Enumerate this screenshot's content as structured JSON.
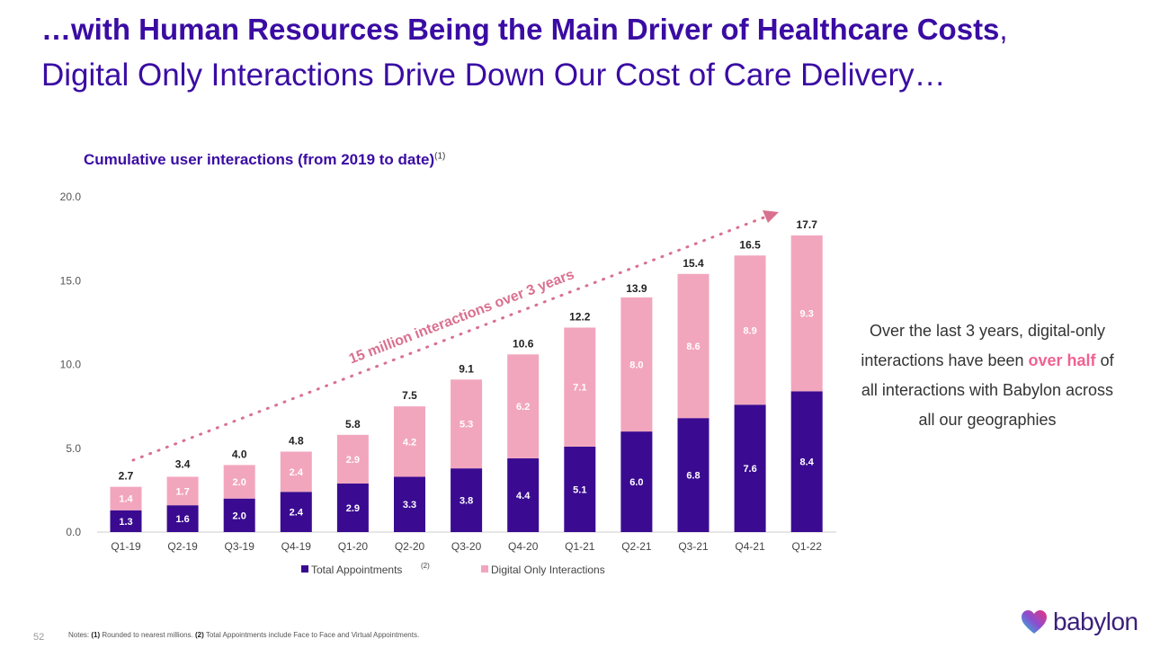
{
  "title": {
    "bold": "…with Human Resources Being the Main Driver of Healthcare Costs",
    "comma": ",",
    "subtitle": "Digital Only Interactions Drive Down Our Cost of Care Delivery…"
  },
  "chart_heading": {
    "text": "Cumulative user interactions (from 2019 to date)",
    "sup": "(1)"
  },
  "side_text": {
    "part1": "Over the last 3 years, digital-only interactions have been",
    "highlight": "over half",
    "part2": "of all interactions with Babylon across all our geographies"
  },
  "footer": {
    "page": "52",
    "notes_label": "Notes:",
    "n1": "(1)",
    "n1_text": "Rounded to nearest millions.",
    "n2": "(2)",
    "n2_text": "Total Appointments include Face to Face and Virtual Appointments."
  },
  "logo": {
    "text": "babylon"
  },
  "colors": {
    "appointments": "#3a0b91",
    "digital": "#f2a6bd",
    "title": "#3a0ca3",
    "arrow": "#d9708f"
  },
  "chart_data": {
    "type": "bar",
    "stacked": true,
    "title": "Cumulative user interactions (from 2019 to date)",
    "categories": [
      "Q1-19",
      "Q2-19",
      "Q3-19",
      "Q4-19",
      "Q1-20",
      "Q2-20",
      "Q3-20",
      "Q4-20",
      "Q1-21",
      "Q2-21",
      "Q3-21",
      "Q4-21",
      "Q1-22"
    ],
    "series": [
      {
        "name": "Total Appointments",
        "legend_sup": "(2)",
        "values": [
          1.3,
          1.6,
          2.0,
          2.4,
          2.9,
          3.3,
          3.8,
          4.4,
          5.1,
          6.0,
          6.8,
          7.6,
          8.4
        ]
      },
      {
        "name": "Digital Only Interactions",
        "values": [
          1.4,
          1.7,
          2.0,
          2.4,
          2.9,
          4.2,
          5.3,
          6.2,
          7.1,
          8.0,
          8.6,
          8.9,
          9.3
        ]
      }
    ],
    "totals": [
      2.7,
      3.4,
      4.0,
      4.8,
      5.8,
      7.5,
      9.1,
      10.6,
      12.2,
      13.9,
      15.4,
      16.5,
      17.7
    ],
    "yticks": [
      0,
      5,
      10,
      15,
      20
    ],
    "ylim": [
      0,
      20
    ],
    "annotation": "15 million interactions over 3 years",
    "legend_position": "bottom"
  }
}
